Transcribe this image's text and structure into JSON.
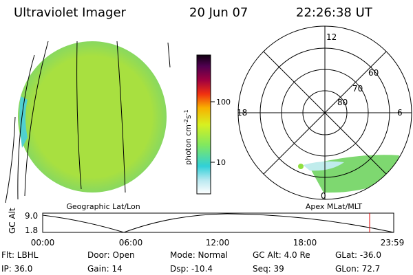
{
  "header": {
    "instrument": "Ultraviolet Imager",
    "date": "20 Jun 07",
    "time": "22:26:38 UT"
  },
  "geographic": {
    "label": "Geographic Lat/Lon"
  },
  "colorbar": {
    "unit": [
      "photon cm",
      "-2",
      "s",
      "-1"
    ],
    "ticks": [
      "100",
      "10"
    ]
  },
  "polar": {
    "label": "Apex MLat/MLT",
    "mlt": [
      "12",
      "18",
      "6",
      "0"
    ],
    "mlat": [
      "60",
      "70",
      "80"
    ]
  },
  "timeline": {
    "label": "GC Alt",
    "ylabels": [
      "9.0",
      "1.8"
    ],
    "xticks": [
      "00:00",
      "06:00",
      "12:00",
      "18:00",
      "23:59"
    ]
  },
  "footer": {
    "rows": [
      [
        "Flt: LBHL",
        "Door: Open",
        "Mode: Normal",
        "GC Alt: 4.0 Re",
        "GLat: -36.0"
      ],
      [
        "IP: 36.0",
        "Gain: 14",
        "Dsp: -10.4",
        "Seq: 39",
        "GLon: 72.7"
      ]
    ]
  }
}
